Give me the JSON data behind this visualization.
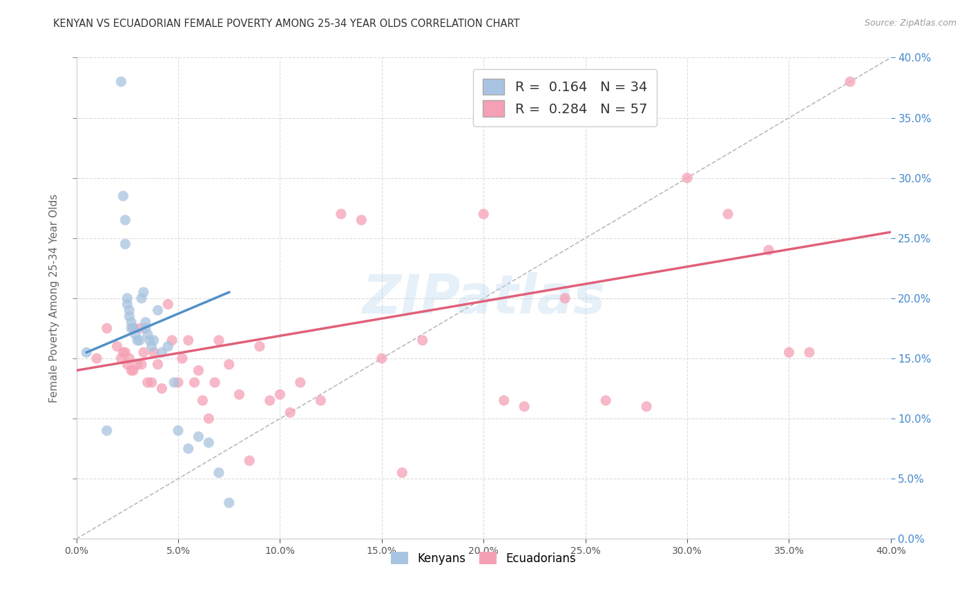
{
  "title": "KENYAN VS ECUADORIAN FEMALE POVERTY AMONG 25-34 YEAR OLDS CORRELATION CHART",
  "source": "Source: ZipAtlas.com",
  "ylabel": "Female Poverty Among 25-34 Year Olds",
  "xlim": [
    0.0,
    0.4
  ],
  "ylim": [
    0.0,
    0.4
  ],
  "x_ticks": [
    0.0,
    0.05,
    0.1,
    0.15,
    0.2,
    0.25,
    0.3,
    0.35,
    0.4
  ],
  "y_ticks": [
    0.0,
    0.05,
    0.1,
    0.15,
    0.2,
    0.25,
    0.3,
    0.35,
    0.4
  ],
  "background_color": "#ffffff",
  "grid_color": "#d8d8d8",
  "kenyan_color": "#a8c4e0",
  "ecuadorian_color": "#f5a0b5",
  "kenyan_line_color": "#5090c8",
  "ecuadorian_line_color": "#e0607a",
  "diagonal_line_color": "#bbbbbb",
  "right_tick_color": "#4488cc",
  "R_kenyan": 0.164,
  "N_kenyan": 34,
  "R_ecuadorian": 0.284,
  "N_ecuadorian": 57,
  "legend_label_kenyan": "Kenyans",
  "legend_label_ecuadorian": "Ecuadorians",
  "watermark": "ZIPatlas",
  "kenyan_x": [
    0.005,
    0.015,
    0.022,
    0.023,
    0.024,
    0.024,
    0.025,
    0.025,
    0.026,
    0.026,
    0.027,
    0.027,
    0.028,
    0.029,
    0.03,
    0.031,
    0.032,
    0.033,
    0.034,
    0.034,
    0.035,
    0.036,
    0.037,
    0.038,
    0.04,
    0.042,
    0.045,
    0.048,
    0.05,
    0.055,
    0.06,
    0.065,
    0.07,
    0.075
  ],
  "kenyan_y": [
    0.155,
    0.09,
    0.38,
    0.285,
    0.265,
    0.245,
    0.2,
    0.195,
    0.19,
    0.185,
    0.18,
    0.175,
    0.175,
    0.17,
    0.165,
    0.165,
    0.2,
    0.205,
    0.18,
    0.175,
    0.17,
    0.165,
    0.16,
    0.165,
    0.19,
    0.155,
    0.16,
    0.13,
    0.09,
    0.075,
    0.085,
    0.08,
    0.055,
    0.03
  ],
  "ecuadorian_x": [
    0.01,
    0.015,
    0.02,
    0.022,
    0.023,
    0.024,
    0.025,
    0.026,
    0.027,
    0.028,
    0.028,
    0.03,
    0.031,
    0.032,
    0.033,
    0.035,
    0.037,
    0.038,
    0.04,
    0.042,
    0.045,
    0.047,
    0.05,
    0.052,
    0.055,
    0.058,
    0.06,
    0.062,
    0.065,
    0.068,
    0.07,
    0.075,
    0.08,
    0.085,
    0.09,
    0.095,
    0.1,
    0.105,
    0.11,
    0.12,
    0.13,
    0.14,
    0.15,
    0.16,
    0.17,
    0.2,
    0.21,
    0.22,
    0.24,
    0.26,
    0.28,
    0.3,
    0.32,
    0.34,
    0.35,
    0.36,
    0.38
  ],
  "ecuadorian_y": [
    0.15,
    0.175,
    0.16,
    0.15,
    0.155,
    0.155,
    0.145,
    0.15,
    0.14,
    0.14,
    0.175,
    0.145,
    0.175,
    0.145,
    0.155,
    0.13,
    0.13,
    0.155,
    0.145,
    0.125,
    0.195,
    0.165,
    0.13,
    0.15,
    0.165,
    0.13,
    0.14,
    0.115,
    0.1,
    0.13,
    0.165,
    0.145,
    0.12,
    0.065,
    0.16,
    0.115,
    0.12,
    0.105,
    0.13,
    0.115,
    0.27,
    0.265,
    0.15,
    0.055,
    0.165,
    0.27,
    0.115,
    0.11,
    0.2,
    0.115,
    0.11,
    0.3,
    0.27,
    0.24,
    0.155,
    0.155,
    0.38
  ],
  "kenyan_line_x": [
    0.005,
    0.075
  ],
  "kenyan_line_y": [
    0.155,
    0.205
  ],
  "ecuadorian_line_x": [
    0.0,
    0.4
  ],
  "ecuadorian_line_y": [
    0.14,
    0.255
  ]
}
